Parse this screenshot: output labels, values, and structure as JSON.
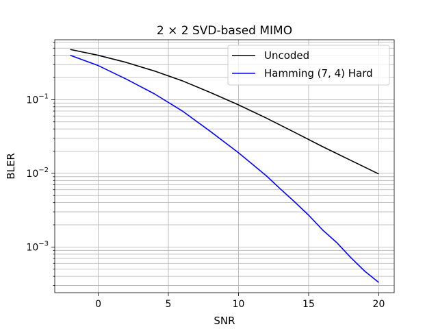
{
  "chart_data": {
    "type": "line",
    "title": "2 × 2 SVD-based MIMO",
    "xlabel": "SNR",
    "ylabel": "BLER",
    "xlim": [
      -3.1,
      21.1
    ],
    "ylim": [
      0.00024,
      0.65
    ],
    "yscale": "log",
    "grid": true,
    "legend_position": "top-right",
    "xticks": [
      0,
      5,
      10,
      15,
      20
    ],
    "xtick_labels": [
      "0",
      "5",
      "10",
      "15",
      "20"
    ],
    "yticks": [
      0.001,
      0.01,
      0.1
    ],
    "ytick_labels": [
      {
        "base": "10",
        "exp": "−3"
      },
      {
        "base": "10",
        "exp": "−2"
      },
      {
        "base": "10",
        "exp": "−1"
      }
    ],
    "series": [
      {
        "name": "Uncoded",
        "color": "#000000",
        "x": [
          -2,
          0,
          2,
          4,
          6,
          8,
          10,
          12,
          14,
          16,
          18,
          20
        ],
        "y": [
          0.48,
          0.4,
          0.32,
          0.245,
          0.18,
          0.125,
          0.085,
          0.056,
          0.036,
          0.023,
          0.015,
          0.0098
        ]
      },
      {
        "name": "Hamming (7, 4) Hard",
        "color": "#0000ff",
        "x": [
          -2,
          0,
          2,
          4,
          6,
          8,
          10,
          12,
          13,
          14,
          15,
          16,
          17,
          18,
          19,
          20
        ],
        "y": [
          0.4,
          0.29,
          0.19,
          0.12,
          0.07,
          0.037,
          0.019,
          0.0092,
          0.0061,
          0.0041,
          0.0027,
          0.0017,
          0.00115,
          0.00072,
          0.00047,
          0.00033
        ]
      }
    ]
  }
}
